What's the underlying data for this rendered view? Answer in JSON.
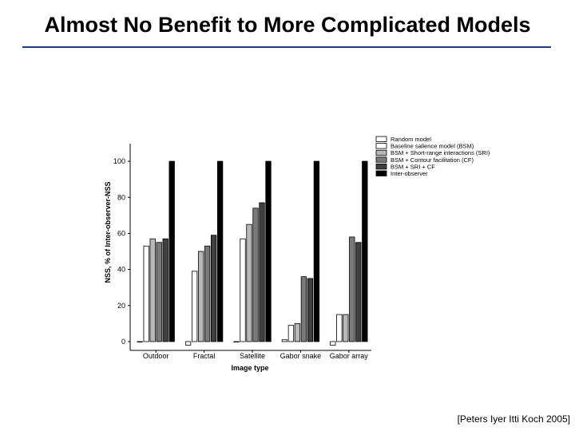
{
  "slide": {
    "title": "Almost No Benefit to More Complicated Models",
    "citation": "[Peters Iyer Itti Koch 2005]"
  },
  "chart_data": {
    "type": "bar",
    "title": "",
    "xlabel": "Image type",
    "ylabel": "NSS, % of Inter-observer-NSS",
    "ylim": [
      -4,
      108
    ],
    "yticks": [
      0,
      20,
      40,
      60,
      80,
      100
    ],
    "categories": [
      "Outdoor",
      "Fractal",
      "Satellite",
      "Gabor snake",
      "Gabor array"
    ],
    "legend_position": "top-right",
    "series": [
      {
        "name": "Random model",
        "color": "#ffffff",
        "values": [
          0,
          -2,
          0,
          1,
          -2
        ]
      },
      {
        "name": "Baseline salience model (BSM)",
        "color": "#ffffff",
        "values": [
          53,
          39,
          57,
          9,
          15
        ]
      },
      {
        "name": "BSM + Short-range interactions (SRI)",
        "color": "#b8b8b8",
        "values": [
          57,
          50,
          65,
          10,
          15
        ]
      },
      {
        "name": "BSM + Contour facilitation (CF)",
        "color": "#7a7a7a",
        "values": [
          55,
          53,
          74,
          36,
          58
        ]
      },
      {
        "name": "BSM + SRI + CF",
        "color": "#404040",
        "values": [
          57,
          59,
          77,
          35,
          55
        ]
      },
      {
        "name": "Inter-observer",
        "color": "#000000",
        "values": [
          100,
          100,
          100,
          100,
          100
        ]
      }
    ]
  }
}
